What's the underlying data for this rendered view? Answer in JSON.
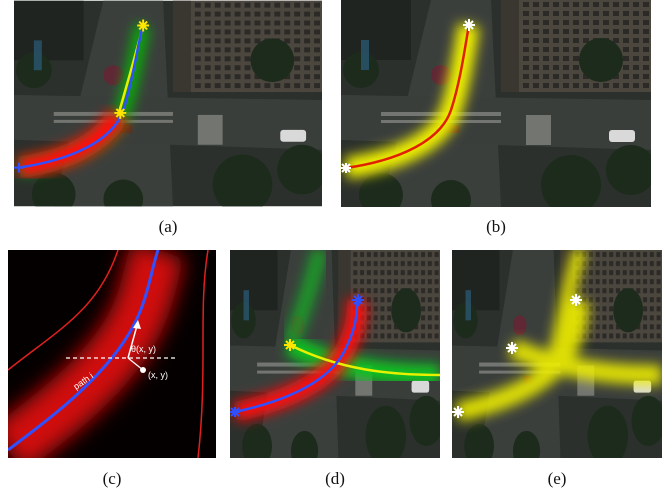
{
  "panels": [
    {
      "label": "(a)"
    },
    {
      "label": "(b)"
    },
    {
      "label": "(c)"
    },
    {
      "label": "(d)"
    },
    {
      "label": "(e)"
    }
  ],
  "panel_c_annotations": {
    "angle": "θ(x, y)",
    "point": "(x, y)",
    "path": "path i"
  }
}
